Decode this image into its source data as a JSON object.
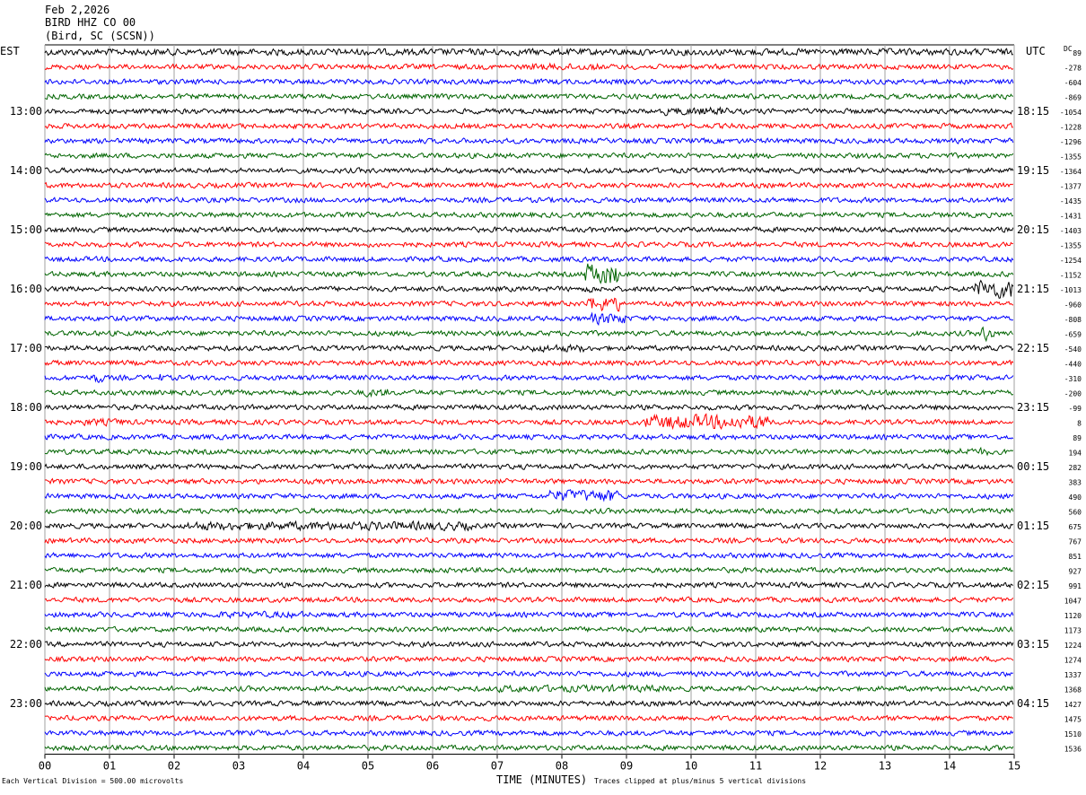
{
  "header": {
    "date": "Feb 2,2026",
    "station": "BIRD HHZ CO 00",
    "location": "(Bird, SC (SCSN))"
  },
  "tz_left": "EST",
  "tz_right": "UTC",
  "dc_label": "DC",
  "footer": {
    "division": "Each Vertical Division =  500.00 microvolts",
    "clipped": "Traces clipped at plus/minus 5 vertical divisions"
  },
  "colors": {
    "traces": [
      "#000000",
      "#ff0000",
      "#0000ff",
      "#006400"
    ],
    "grid": "#a0a0a0"
  },
  "chart_data": {
    "type": "line",
    "title": "BIRD HHZ CO 00",
    "xlabel": "TIME (MINUTES)",
    "xlim": [
      0,
      15
    ],
    "x_ticks": [
      "00",
      "01",
      "02",
      "03",
      "04",
      "05",
      "06",
      "07",
      "08",
      "09",
      "10",
      "11",
      "12",
      "13",
      "14",
      "15"
    ],
    "minutes_per_line": 15,
    "left_time_labels": [
      "13:00",
      "14:00",
      "15:00",
      "16:00",
      "17:00",
      "18:00",
      "19:00",
      "20:00",
      "21:00",
      "22:00",
      "23:00"
    ],
    "right_time_labels": [
      "18:15",
      "19:15",
      "20:15",
      "21:15",
      "22:15",
      "23:15",
      "00:15",
      "01:15",
      "02:15",
      "03:15",
      "04:15"
    ],
    "dc_offsets": [
      89,
      -278,
      -604,
      -869,
      -1054,
      -1228,
      -1296,
      -1355,
      -1364,
      -1377,
      -1435,
      -1431,
      -1403,
      -1355,
      -1254,
      -1152,
      -1013,
      -960,
      -808,
      -659,
      -540,
      -440,
      -310,
      -200,
      -99,
      8,
      89,
      194,
      282,
      383,
      490,
      560,
      675,
      767,
      851,
      927,
      991,
      1047,
      1120,
      1173,
      1224,
      1274,
      1337,
      1368,
      1427,
      1475,
      1510,
      1536
    ],
    "events": [
      {
        "line": 0,
        "start": 0,
        "end": 15,
        "amp": 1.3
      },
      {
        "line": 1,
        "start": 7.5,
        "end": 8.6,
        "amp": 1.4
      },
      {
        "line": 4,
        "start": 9.6,
        "end": 10.6,
        "amp": 1.6
      },
      {
        "line": 15,
        "start": 8.35,
        "end": 8.9,
        "amp": 4.2
      },
      {
        "line": 16,
        "start": 14.4,
        "end": 15.0,
        "amp": 3.6
      },
      {
        "line": 16,
        "start": 8.4,
        "end": 8.5,
        "amp": 2.2
      },
      {
        "line": 17,
        "start": 8.4,
        "end": 8.9,
        "amp": 3.0
      },
      {
        "line": 18,
        "start": 8.45,
        "end": 9.0,
        "amp": 2.2
      },
      {
        "line": 19,
        "start": 14.5,
        "end": 14.7,
        "amp": 3.0
      },
      {
        "line": 20,
        "start": 7.5,
        "end": 8.4,
        "amp": 1.5
      },
      {
        "line": 22,
        "start": 0.75,
        "end": 0.9,
        "amp": 2.2
      },
      {
        "line": 22,
        "start": 1.75,
        "end": 1.85,
        "amp": 1.8
      },
      {
        "line": 23,
        "start": 4.9,
        "end": 5.3,
        "amp": 1.6
      },
      {
        "line": 25,
        "start": 9.3,
        "end": 11.2,
        "amp": 2.8
      },
      {
        "line": 25,
        "start": 0.6,
        "end": 1.3,
        "amp": 1.4
      },
      {
        "line": 27,
        "start": 14.0,
        "end": 14.6,
        "amp": 1.5
      },
      {
        "line": 30,
        "start": 7.8,
        "end": 8.9,
        "amp": 2.4
      },
      {
        "line": 32,
        "start": 2.2,
        "end": 6.6,
        "amp": 1.7
      },
      {
        "line": 38,
        "start": 2.6,
        "end": 4.0,
        "amp": 1.3
      },
      {
        "line": 43,
        "start": 7.0,
        "end": 9.6,
        "amp": 1.4
      }
    ]
  }
}
